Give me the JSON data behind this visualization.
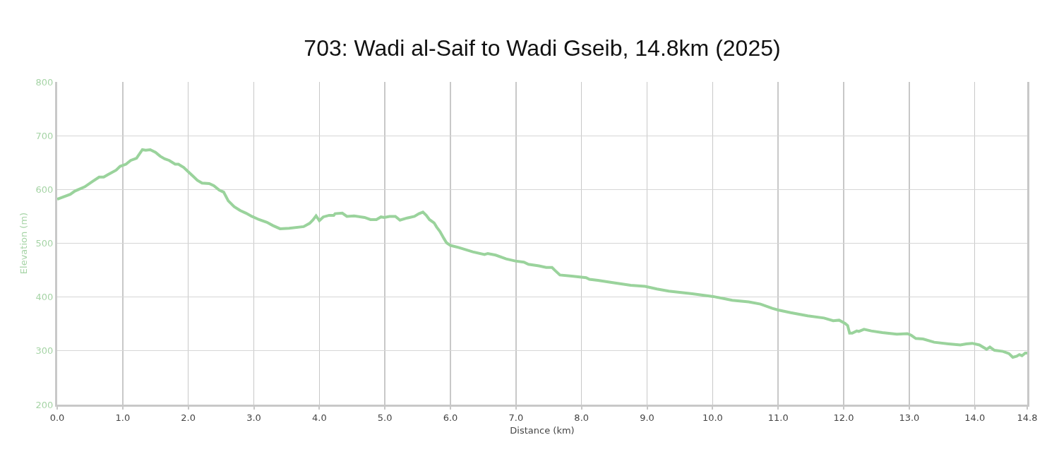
{
  "chart_data": {
    "type": "line",
    "title": "703: Wadi al-Saif to Wadi Gseib, 14.8km (2025)",
    "xlabel": "Distance (km)",
    "ylabel": "Elevation (m)",
    "x": [
      0,
      0.2,
      0.27,
      0.42,
      0.54,
      0.64,
      0.71,
      0.78,
      0.9,
      0.96,
      1.05,
      1.12,
      1.21,
      1.3,
      1.35,
      1.42,
      1.5,
      1.57,
      1.64,
      1.71,
      1.8,
      1.85,
      1.93,
      2.0,
      2.07,
      2.14,
      2.21,
      2.32,
      2.39,
      2.47,
      2.54,
      2.61,
      2.7,
      2.79,
      2.88,
      2.97,
      3.08,
      3.2,
      3.29,
      3.4,
      3.54,
      3.76,
      3.85,
      3.9,
      3.95,
      4.0,
      4.06,
      4.15,
      4.22,
      4.24,
      4.35,
      4.42,
      4.53,
      4.69,
      4.78,
      4.87,
      4.94,
      4.99,
      5.07,
      5.16,
      5.23,
      5.34,
      5.45,
      5.52,
      5.58,
      5.63,
      5.68,
      5.75,
      5.79,
      5.84,
      5.9,
      5.94,
      6.0,
      6.13,
      6.34,
      6.52,
      6.57,
      6.69,
      6.85,
      6.99,
      7.12,
      7.19,
      7.35,
      7.46,
      7.55,
      7.6,
      7.67,
      7.85,
      8.07,
      8.12,
      8.25,
      8.46,
      8.75,
      8.97,
      9.15,
      9.33,
      9.69,
      10.01,
      10.3,
      10.55,
      10.73,
      10.91,
      11.0,
      11.19,
      11.45,
      11.7,
      11.84,
      11.93,
      12.02,
      12.06,
      12.09,
      12.13,
      12.2,
      12.23,
      12.31,
      12.42,
      12.59,
      12.81,
      12.97,
      13.03,
      13.1,
      13.21,
      13.38,
      13.6,
      13.78,
      13.87,
      13.96,
      14.07,
      14.18,
      14.23,
      14.3,
      14.43,
      14.52,
      14.58,
      14.64,
      14.68,
      14.72,
      14.77,
      14.8
    ],
    "values": [
      582,
      591,
      597,
      605,
      615,
      623,
      623,
      628,
      636,
      643,
      647,
      654,
      658,
      674,
      673,
      674,
      669,
      662,
      657,
      654,
      647,
      647,
      641,
      633,
      625,
      617,
      612,
      611,
      607,
      599,
      595,
      579,
      568,
      561,
      556,
      550,
      544,
      539,
      533,
      527,
      528,
      531,
      537,
      543,
      551,
      542,
      549,
      552,
      552,
      555,
      556,
      550,
      551,
      548,
      544,
      544,
      549,
      548,
      550,
      550,
      543,
      547,
      550,
      555,
      558,
      552,
      544,
      538,
      530,
      522,
      509,
      501,
      496,
      492,
      484,
      479,
      481,
      478,
      471,
      467,
      465,
      461,
      458,
      455,
      455,
      449,
      441,
      439,
      436,
      433,
      431,
      427,
      422,
      420,
      415,
      411,
      406,
      401,
      394,
      391,
      387,
      379,
      376,
      371,
      365,
      361,
      356,
      357,
      351,
      347,
      333,
      333,
      337,
      336,
      340,
      337,
      334,
      331,
      332,
      329,
      323,
      322,
      316,
      313,
      311,
      313,
      314,
      311,
      303,
      307,
      301,
      299,
      295,
      288,
      290,
      293,
      291,
      296,
      296
    ],
    "color": "#9ad39c",
    "line_style": "solid",
    "xlim": [
      0,
      14.8
    ],
    "xticks": [
      {
        "value": 0,
        "label": "0.0"
      },
      {
        "value": 1,
        "label": "1.0"
      },
      {
        "value": 2,
        "label": "2.0"
      },
      {
        "value": 3,
        "label": "3.0"
      },
      {
        "value": 4,
        "label": "4.0"
      },
      {
        "value": 5,
        "label": "5.0"
      },
      {
        "value": 6,
        "label": "6.0"
      },
      {
        "value": 7,
        "label": "7.0"
      },
      {
        "value": 8,
        "label": "8.0"
      },
      {
        "value": 9,
        "label": "9.0"
      },
      {
        "value": 10,
        "label": "10.0"
      },
      {
        "value": 11,
        "label": "11.0"
      },
      {
        "value": 12,
        "label": "12.0"
      },
      {
        "value": 13,
        "label": "13.0"
      },
      {
        "value": 14,
        "label": "14.0"
      },
      14.8
    ],
    "ylim": [
      200,
      800
    ],
    "yticks": [
      200,
      300,
      400,
      500,
      600,
      700,
      800
    ],
    "grid": true
  }
}
